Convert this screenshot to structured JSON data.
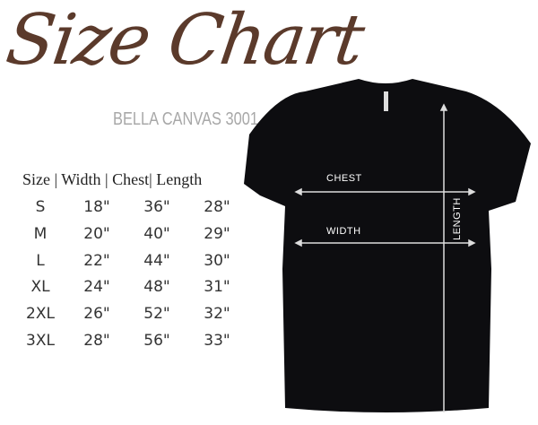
{
  "title": "Size Chart",
  "subtitle": "BELLA CANVAS 3001",
  "table": {
    "header": "Size | Width | Chest| Length",
    "rows": [
      [
        "S",
        "18\"",
        "36\"",
        "28\""
      ],
      [
        "M",
        "20\"",
        "40\"",
        "29\""
      ],
      [
        "L",
        "22\"",
        "44\"",
        "30\""
      ],
      [
        "XL",
        "24\"",
        "48\"",
        "31\""
      ],
      [
        "2XL",
        "26\"",
        "52\"",
        "32\""
      ],
      [
        "3XL",
        "28\"",
        "56\"",
        "33\""
      ]
    ]
  },
  "diagram": {
    "chest_label": "CHEST",
    "width_label": "WIDTH",
    "length_label": "LENGTH",
    "shirt_color": "#0d0d10",
    "title_color": "#5b3a2b"
  }
}
